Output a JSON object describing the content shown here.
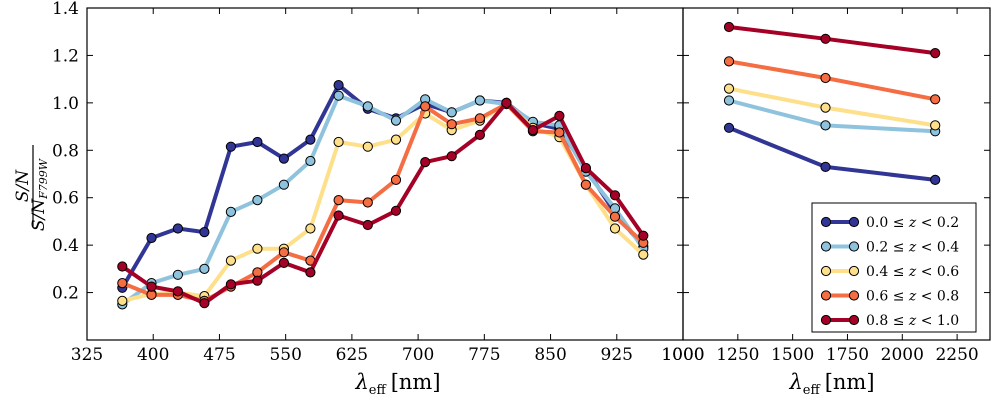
{
  "chart_data": {
    "type": "line",
    "ylabel_num": "S/N",
    "ylabel_den": "S/N",
    "ylabel_den_sub": "F799W",
    "xlabel_symbol": "λ",
    "xlabel_sub": "eff",
    "xlabel_unit": "[nm]",
    "ylim": [
      0.0,
      1.4
    ],
    "yticks": [
      "0.2",
      "0.4",
      "0.6",
      "0.8",
      "1.0",
      "1.2",
      "1.4"
    ],
    "ytick_values": [
      0.2,
      0.4,
      0.6,
      0.8,
      1.0,
      1.2,
      1.4
    ],
    "panels": [
      {
        "name": "optical",
        "xlim": [
          325,
          1000
        ],
        "xticks": [
          "325",
          "400",
          "475",
          "550",
          "625",
          "700",
          "775",
          "850",
          "925",
          "1000"
        ],
        "xtick_values": [
          325,
          400,
          475,
          550,
          625,
          700,
          775,
          850,
          925,
          1000
        ],
        "x": [
          365,
          398,
          428,
          458,
          488,
          518,
          548,
          578,
          610,
          643,
          675,
          708,
          738,
          770,
          800,
          830,
          860,
          890,
          923,
          955
        ],
        "series": [
          {
            "name": "0.0 ≤ z < 0.2",
            "color": "#313695",
            "values": [
              0.22,
              0.43,
              0.47,
              0.455,
              0.815,
              0.835,
              0.765,
              0.845,
              1.075,
              0.975,
              0.935,
              0.995,
              0.96,
              1.01,
              1.0,
              0.915,
              0.89,
              0.725,
              0.535,
              0.395
            ]
          },
          {
            "name": "0.2 ≤ z < 0.4",
            "color": "#8fc3dd",
            "values": [
              0.15,
              0.24,
              0.275,
              0.3,
              0.54,
              0.59,
              0.655,
              0.755,
              1.03,
              0.985,
              0.925,
              1.015,
              0.96,
              1.01,
              0.995,
              0.92,
              0.905,
              0.71,
              0.555,
              0.385
            ]
          },
          {
            "name": "0.4 ≤ z < 0.6",
            "color": "#fee08b",
            "values": [
              0.165,
              0.195,
              0.2,
              0.185,
              0.335,
              0.385,
              0.385,
              0.47,
              0.835,
              0.815,
              0.845,
              0.955,
              0.885,
              0.925,
              0.995,
              0.895,
              0.855,
              0.655,
              0.47,
              0.36
            ]
          },
          {
            "name": "0.6 ≤ z < 0.8",
            "color": "#f46d43",
            "values": [
              0.24,
              0.19,
              0.19,
              0.165,
              0.225,
              0.285,
              0.37,
              0.335,
              0.59,
              0.58,
              0.675,
              0.985,
              0.91,
              0.935,
              0.995,
              0.88,
              0.875,
              0.655,
              0.52,
              0.41
            ]
          },
          {
            "name": "0.8 ≤ z < 1.0",
            "color": "#a50026",
            "values": [
              0.31,
              0.225,
              0.205,
              0.155,
              0.235,
              0.25,
              0.325,
              0.285,
              0.525,
              0.485,
              0.545,
              0.75,
              0.775,
              0.865,
              1.0,
              0.885,
              0.945,
              0.725,
              0.61,
              0.44
            ]
          }
        ]
      },
      {
        "name": "infrared",
        "xlim": [
          1000,
          2400
        ],
        "xticks": [
          "1000",
          "1250",
          "1500",
          "1750",
          "2000",
          "2250"
        ],
        "xtick_values": [
          1000,
          1250,
          1500,
          1750,
          2000,
          2250
        ],
        "x": [
          1210,
          1650,
          2150
        ],
        "series": [
          {
            "name": "0.0 ≤ z < 0.2",
            "color": "#313695",
            "values": [
              0.895,
              0.73,
              0.675
            ]
          },
          {
            "name": "0.2 ≤ z < 0.4",
            "color": "#8fc3dd",
            "values": [
              1.01,
              0.905,
              0.88
            ]
          },
          {
            "name": "0.4 ≤ z < 0.6",
            "color": "#fee08b",
            "values": [
              1.06,
              0.98,
              0.905
            ]
          },
          {
            "name": "0.6 ≤ z < 0.8",
            "color": "#f46d43",
            "values": [
              1.175,
              1.105,
              1.015
            ]
          },
          {
            "name": "0.8 ≤ z < 1.0",
            "color": "#a50026",
            "values": [
              1.32,
              1.27,
              1.21
            ]
          }
        ]
      }
    ],
    "legend": {
      "position": "lower-right",
      "entries": [
        {
          "low": "0.0",
          "high": "0.2",
          "color": "#313695"
        },
        {
          "low": "0.2",
          "high": "0.4",
          "color": "#8fc3dd"
        },
        {
          "low": "0.4",
          "high": "0.6",
          "color": "#fee08b"
        },
        {
          "low": "0.6",
          "high": "0.8",
          "color": "#f46d43"
        },
        {
          "low": "0.8",
          "high": "1.0",
          "color": "#a50026"
        }
      ]
    }
  }
}
